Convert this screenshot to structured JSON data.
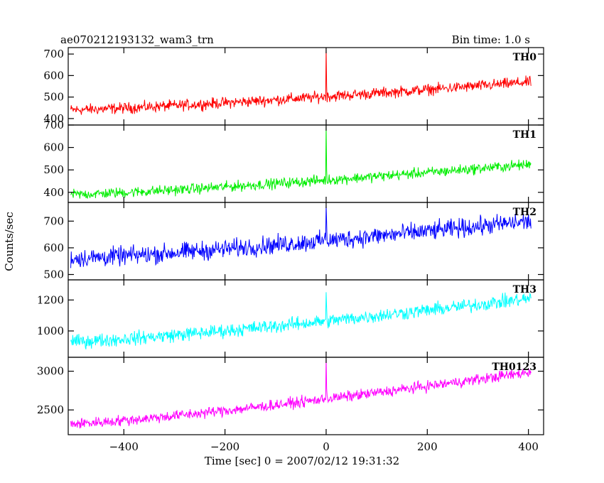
{
  "header": {
    "title": "ae070212193132_wam3_trn",
    "bin_time": "Bin time: 1.0 s"
  },
  "chart_data": {
    "type": "line",
    "xlabel": "Time [sec] 0 = 2007/02/12 19:31:32",
    "ylabel": "Counts/sec",
    "xlim": [
      -510,
      430
    ],
    "x_ticks": [
      -400,
      -200,
      0,
      200,
      400
    ],
    "x_tick_labels": [
      "−400",
      "−200",
      "0",
      "200",
      "400"
    ],
    "x_step_sec": 1.0,
    "x_range_data": [
      -505,
      405
    ],
    "panels": [
      {
        "name": "TH0",
        "color": "#ff0000",
        "ylim": [
          370,
          730
        ],
        "y_ticks": [
          400,
          500,
          600,
          700
        ],
        "y_tick_labels": [
          "400",
          "500",
          "600",
          "700"
        ],
        "baseline_start": 440,
        "baseline_end": 570,
        "noise": 22,
        "spike": 730
      },
      {
        "name": "TH1",
        "color": "#00ee00",
        "ylim": [
          355,
          700
        ],
        "y_ticks": [
          400,
          500,
          600,
          700
        ],
        "y_tick_labels": [
          "400",
          "500",
          "600",
          "700"
        ],
        "baseline_start": 390,
        "baseline_end": 525,
        "noise": 20,
        "spike": 700
      },
      {
        "name": "TH2",
        "color": "#0000ff",
        "ylim": [
          480,
          770
        ],
        "y_ticks": [
          500,
          600,
          700
        ],
        "y_tick_labels": [
          "500",
          "600",
          "700"
        ],
        "baseline_start": 560,
        "baseline_end": 700,
        "noise": 30,
        "spike": 760
      },
      {
        "name": "TH3",
        "color": "#00ffff",
        "ylim": [
          830,
          1330
        ],
        "y_ticks": [
          1000,
          1200
        ],
        "y_tick_labels": [
          "1000",
          "1200"
        ],
        "baseline_start": 930,
        "baseline_end": 1210,
        "noise": 38,
        "spike": 1250
      },
      {
        "name": "TH0123",
        "color": "#ff00ff",
        "ylim": [
          2180,
          3180
        ],
        "y_ticks": [
          2500,
          3000
        ],
        "y_tick_labels": [
          "2500",
          "3000"
        ],
        "baseline_start": 2320,
        "baseline_end": 2990,
        "noise": 60,
        "spike": 3180
      }
    ],
    "grid": false,
    "legend": "none"
  }
}
